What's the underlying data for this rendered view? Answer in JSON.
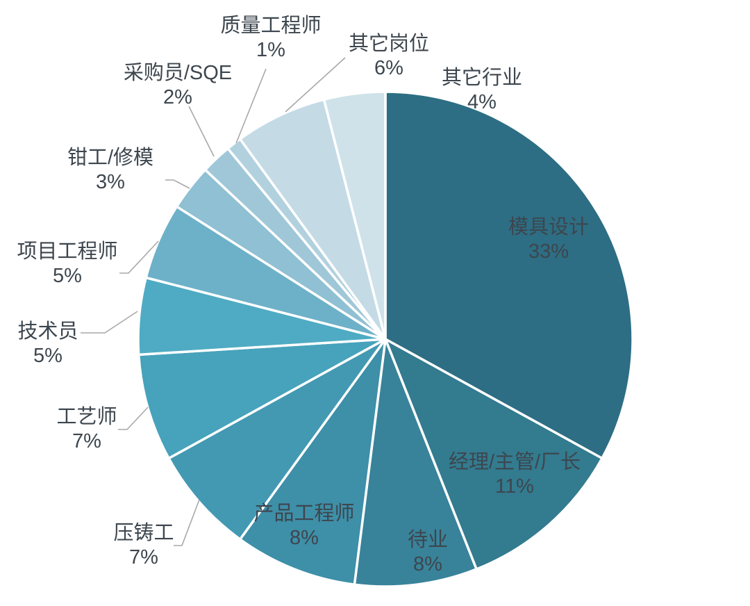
{
  "chart_data": {
    "type": "pie",
    "title": "",
    "start_angle_deg": 0,
    "direction": "clockwise",
    "percent_suffix": "%",
    "background_color": "#ffffff",
    "slice_border_color": "#ffffff",
    "leader_line_color": "#a8a8a8",
    "label_text_color": "#3d464e",
    "slices": [
      {
        "label": "模具设计",
        "value_pct": 33,
        "color": "#2d6e84",
        "label_placement": "inside"
      },
      {
        "label": "经理/主管/厂长",
        "value_pct": 11,
        "color": "#337b8f",
        "label_placement": "inside"
      },
      {
        "label": "待业",
        "value_pct": 8,
        "color": "#38839a",
        "label_placement": "inside"
      },
      {
        "label": "产品工程师",
        "value_pct": 8,
        "color": "#3e8fa8",
        "label_placement": "inside"
      },
      {
        "label": "压铸工",
        "value_pct": 7,
        "color": "#4399b2",
        "label_placement": "outside"
      },
      {
        "label": "工艺师",
        "value_pct": 7,
        "color": "#47a2bb",
        "label_placement": "outside"
      },
      {
        "label": "技术员",
        "value_pct": 5,
        "color": "#4fabc3",
        "label_placement": "outside"
      },
      {
        "label": "项目工程师",
        "value_pct": 5,
        "color": "#6db1c8",
        "label_placement": "outside"
      },
      {
        "label": "钳工/修模",
        "value_pct": 3,
        "color": "#8fc0d3",
        "label_placement": "outside"
      },
      {
        "label": "采购员/SQE",
        "value_pct": 2,
        "color": "#9fc7d8",
        "label_placement": "outside"
      },
      {
        "label": "质量工程师",
        "value_pct": 1,
        "color": "#b2d1df",
        "label_placement": "outside"
      },
      {
        "label": "其它岗位",
        "value_pct": 6,
        "color": "#c4dbe6",
        "label_placement": "outside"
      },
      {
        "label": "其它行业",
        "value_pct": 4,
        "color": "#cfe2ea",
        "label_placement": "outside"
      }
    ]
  }
}
